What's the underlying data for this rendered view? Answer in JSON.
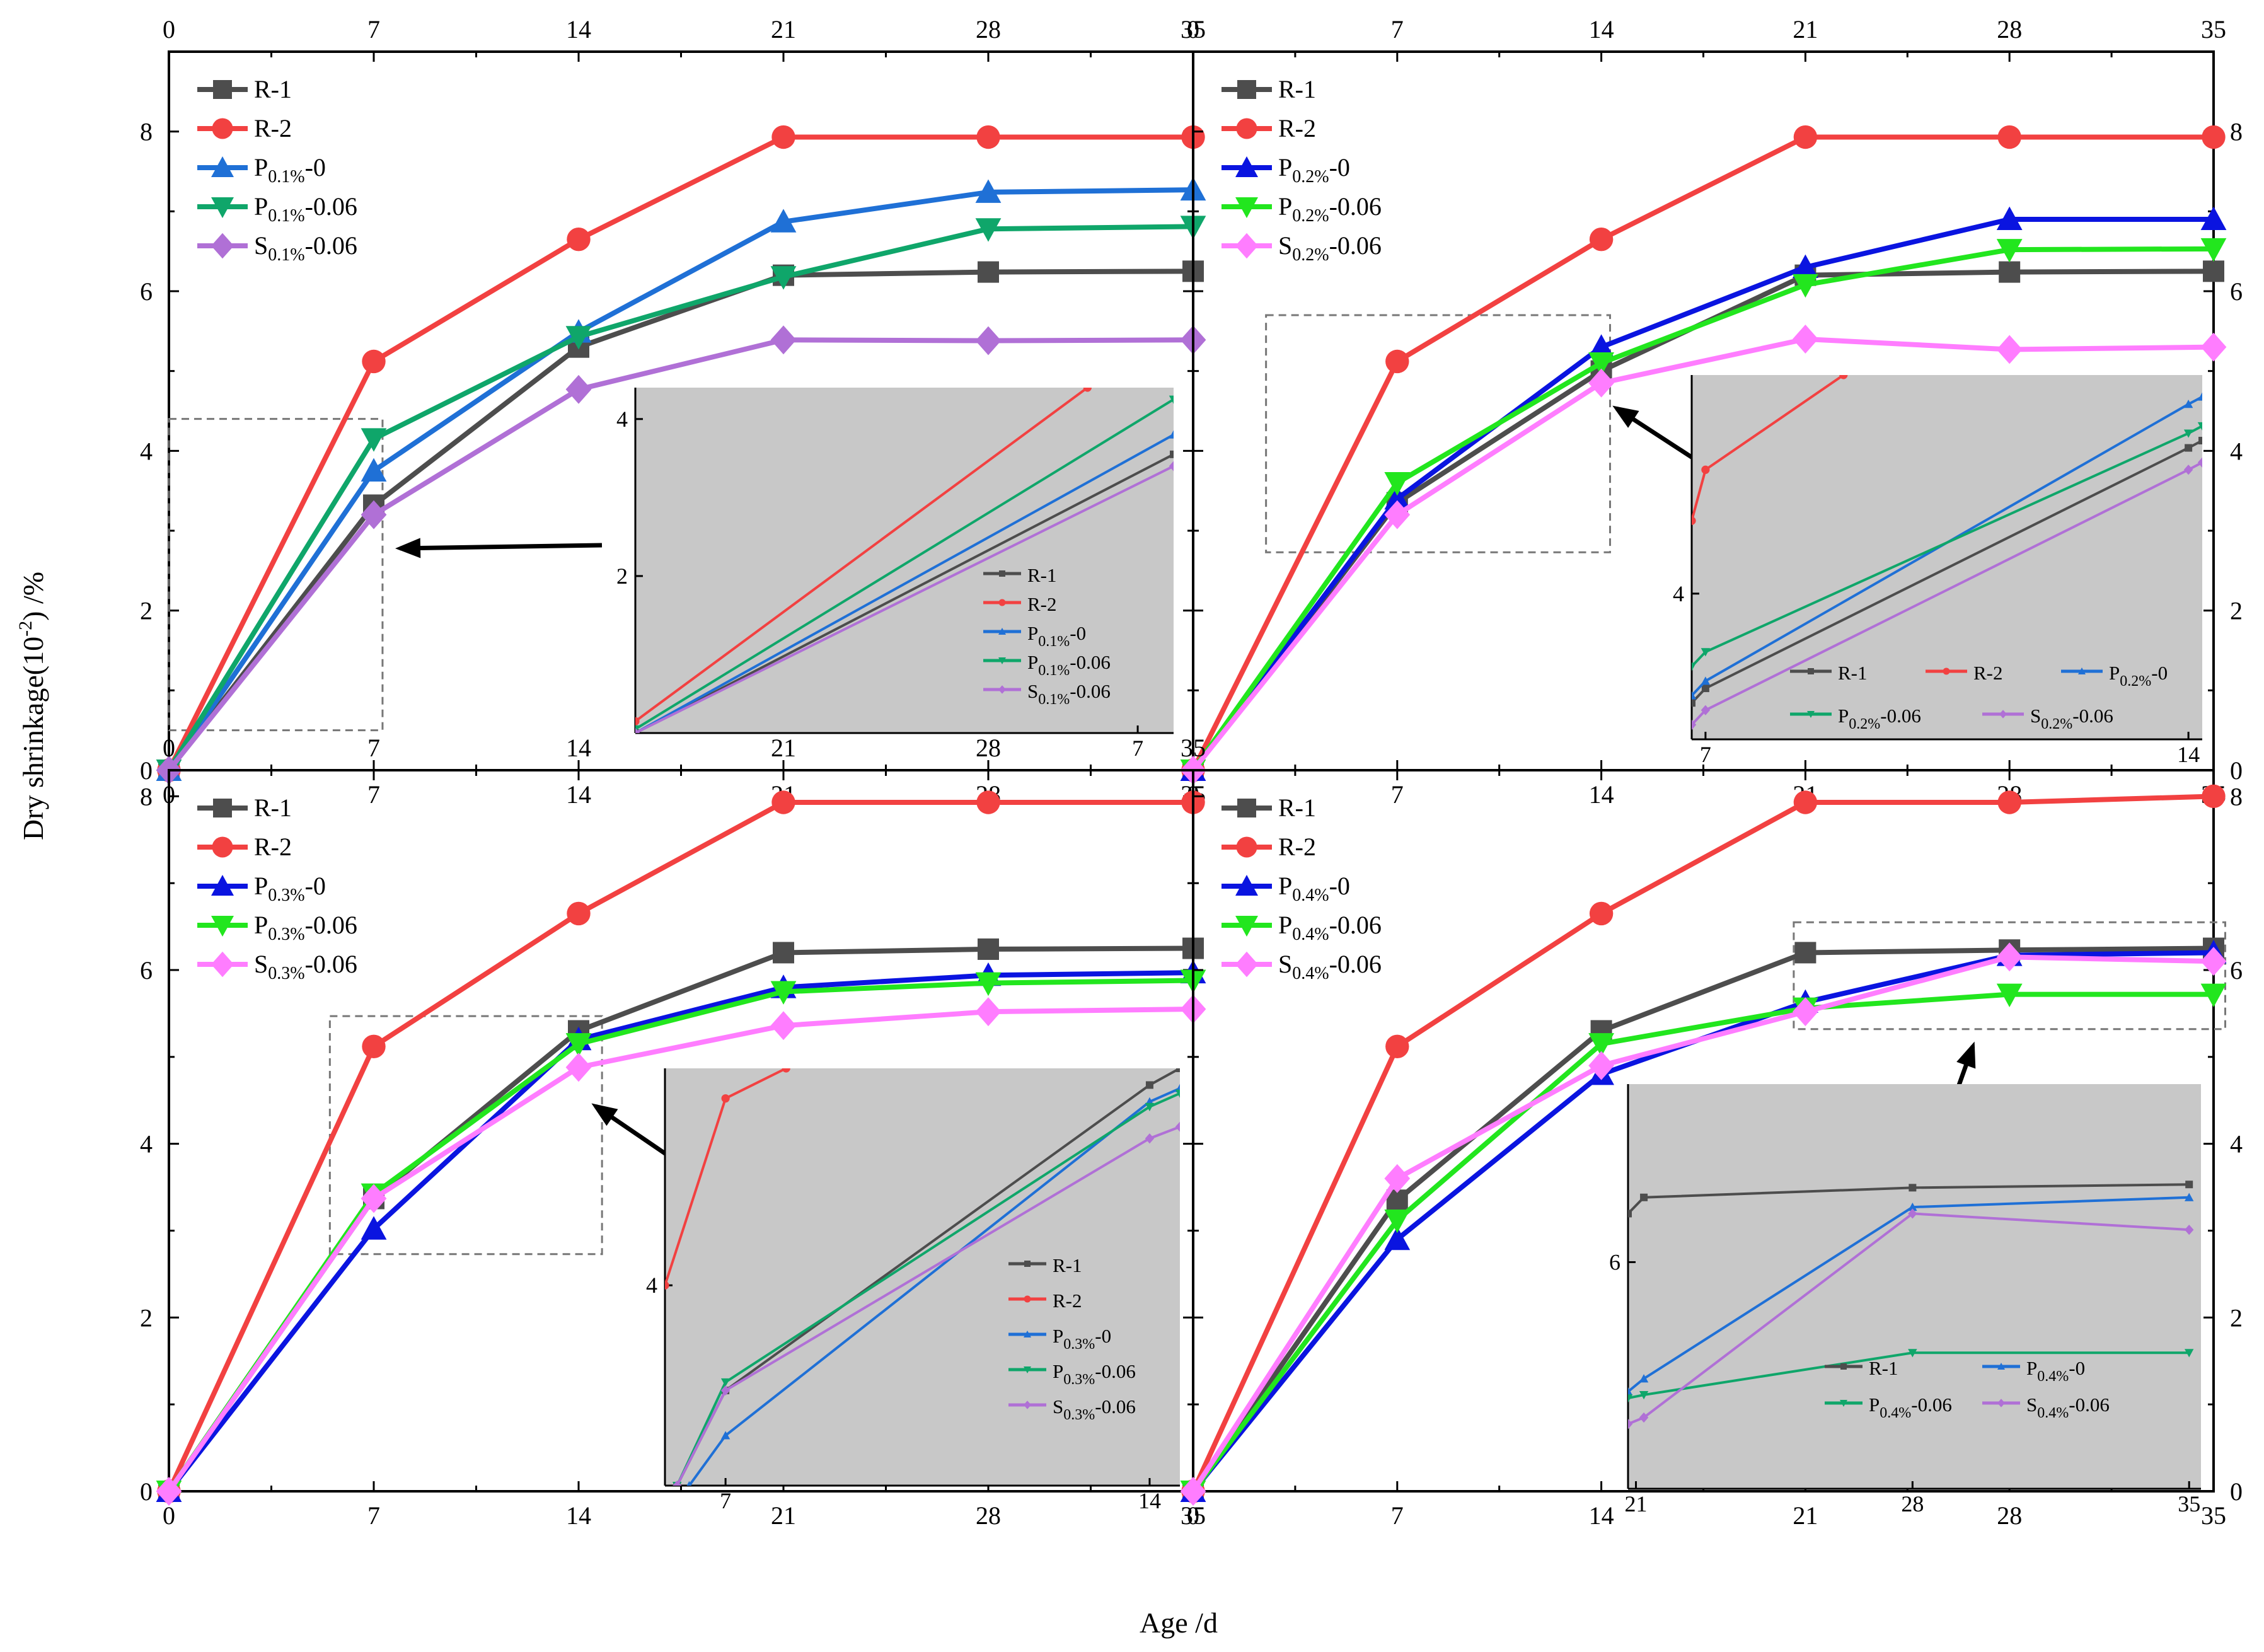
{
  "figure": {
    "ylabel": "Dry shrinkage(10",
    "ylabel_sup": "-2",
    "ylabel_unit": ") /%",
    "xlabel": "Age /d"
  },
  "colors": {
    "R-1": "#4d4d4d",
    "R-2": "#f24141",
    "P0": "#1f70d6",
    "P006": "#0fa66a",
    "S006": "#b070d6",
    "P0_dark": "#0a14e0",
    "P006_bright": "#22e61e",
    "S006_pink": "#ff7dff",
    "inset_bg": "#c8c8c8"
  },
  "chart_data": [
    {
      "id": "a",
      "type": "line",
      "xlim": [
        0,
        35
      ],
      "ylim": [
        0,
        9
      ],
      "xticks": [
        "0",
        "7",
        "14",
        "21",
        "28",
        "35"
      ],
      "yticks": [
        "0",
        "2",
        "4",
        "6",
        "8"
      ],
      "xticks_top": [
        "0",
        "7",
        "14",
        "21",
        "28",
        "35"
      ],
      "x": [
        0,
        7,
        14,
        21,
        28,
        35
      ],
      "legend_position": "top-left",
      "series": [
        {
          "key": "R-1",
          "name": "R-1",
          "sub": "",
          "color": "#4d4d4d",
          "marker": "square",
          "values": [
            0,
            3.32,
            5.3,
            6.2,
            6.24,
            6.25
          ]
        },
        {
          "key": "R-2",
          "name": "R-2",
          "sub": "",
          "color": "#f24141",
          "marker": "circle",
          "values": [
            0,
            5.12,
            6.65,
            7.93,
            7.93,
            7.93
          ]
        },
        {
          "key": "P0",
          "name": "P",
          "sub": "0.1%",
          "suffix": "-0",
          "color": "#1f70d6",
          "marker": "triangle-up",
          "values": [
            0,
            3.75,
            5.49,
            6.87,
            7.24,
            7.27
          ]
        },
        {
          "key": "P006",
          "name": "P",
          "sub": "0.1%",
          "suffix": "-0.06",
          "color": "#0fa66a",
          "marker": "triangle-down",
          "values": [
            0,
            4.15,
            5.43,
            6.18,
            6.78,
            6.81
          ]
        },
        {
          "key": "S006",
          "name": "S",
          "sub": "0.1%",
          "suffix": "-0.06",
          "color": "#b070d6",
          "marker": "diamond",
          "values": [
            0,
            3.2,
            4.77,
            5.39,
            5.38,
            5.39
          ]
        }
      ],
      "inset": {
        "xlim": [
          0,
          7.5
        ],
        "ylim": [
          0,
          4.4
        ],
        "xticks": [
          "7"
        ],
        "yticks": [
          "2",
          "4"
        ],
        "series": [
          {
            "key": "R-1",
            "values": [
              [
                0,
                0
              ],
              [
                7.5,
                3.55
              ]
            ]
          },
          {
            "key": "R-2",
            "values": [
              [
                0,
                0.15
              ],
              [
                6.3,
                4.4
              ]
            ]
          },
          {
            "key": "P0",
            "values": [
              [
                0,
                0
              ],
              [
                7.5,
                3.8
              ]
            ]
          },
          {
            "key": "P006",
            "values": [
              [
                0,
                0.05
              ],
              [
                7.5,
                4.25
              ]
            ]
          },
          {
            "key": "S006",
            "values": [
              [
                0,
                0
              ],
              [
                7.5,
                3.4
              ]
            ]
          }
        ],
        "legend": [
          {
            "key": "R-1",
            "name": "R-1",
            "sub": "",
            "suffix": ""
          },
          {
            "key": "R-2",
            "name": "R-2",
            "sub": "",
            "suffix": ""
          },
          {
            "key": "P0",
            "name": "P",
            "sub": "0.1%",
            "suffix": "-0"
          },
          {
            "key": "P006",
            "name": "P",
            "sub": "0.1%",
            "suffix": "-0.06"
          },
          {
            "key": "S006",
            "name": "S",
            "sub": "0.1%",
            "suffix": "-0.06"
          }
        ]
      }
    },
    {
      "id": "b",
      "type": "line",
      "xlim": [
        0,
        35
      ],
      "ylim": [
        0,
        9
      ],
      "xticks": [
        "0",
        "7",
        "14",
        "21",
        "28",
        "35"
      ],
      "yticks": [
        "0",
        "2",
        "4",
        "6",
        "8"
      ],
      "xticks_top": [
        "0",
        "7",
        "14",
        "21",
        "28",
        "35"
      ],
      "x": [
        0,
        7,
        14,
        21,
        28,
        35
      ],
      "legend_position": "top-left",
      "series": [
        {
          "key": "R-1",
          "name": "R-1",
          "sub": "",
          "color": "#4d4d4d",
          "marker": "square",
          "values": [
            0,
            3.35,
            5.0,
            6.2,
            6.24,
            6.25
          ]
        },
        {
          "key": "R-2",
          "name": "R-2",
          "sub": "",
          "color": "#f24141",
          "marker": "circle",
          "values": [
            0,
            5.12,
            6.65,
            7.93,
            7.93,
            7.93
          ]
        },
        {
          "key": "P0",
          "name": "P",
          "sub": "0.2%",
          "suffix": "-0",
          "color": "#0a14e0",
          "marker": "triangle-up",
          "values": [
            0,
            3.4,
            5.3,
            6.3,
            6.9,
            6.9
          ]
        },
        {
          "key": "P006",
          "name": "P",
          "sub": "0.2%",
          "suffix": "-0.06",
          "color": "#22e61e",
          "marker": "triangle-down",
          "values": [
            0,
            3.6,
            5.1,
            6.08,
            6.52,
            6.53
          ]
        },
        {
          "key": "S006",
          "name": "S",
          "sub": "0.2%",
          "suffix": "-0.06",
          "color": "#ff7dff",
          "marker": "diamond",
          "values": [
            0,
            3.2,
            4.85,
            5.4,
            5.27,
            5.3
          ]
        }
      ],
      "inset": {
        "xlim": [
          6.8,
          14.2
        ],
        "ylim": [
          3.0,
          5.5
        ],
        "xticks": [
          "7",
          "14"
        ],
        "yticks": [
          "4"
        ],
        "series": [
          {
            "key": "R-1",
            "values": [
              [
                6.8,
                3.25
              ],
              [
                7,
                3.35
              ],
              [
                14,
                5.0
              ],
              [
                14.2,
                5.05
              ]
            ]
          },
          {
            "key": "R-2",
            "values": [
              [
                6.8,
                4.5
              ],
              [
                7,
                4.85
              ],
              [
                9,
                5.5
              ]
            ]
          },
          {
            "key": "P0",
            "values": [
              [
                6.8,
                3.3
              ],
              [
                7,
                3.4
              ],
              [
                14,
                5.3
              ],
              [
                14.2,
                5.35
              ]
            ]
          },
          {
            "key": "P006",
            "values": [
              [
                6.8,
                3.5
              ],
              [
                7,
                3.6
              ],
              [
                14,
                5.1
              ],
              [
                14.2,
                5.15
              ]
            ]
          },
          {
            "key": "S006",
            "values": [
              [
                6.8,
                3.1
              ],
              [
                7,
                3.2
              ],
              [
                14,
                4.85
              ],
              [
                14.2,
                4.9
              ]
            ]
          }
        ],
        "legend": [
          {
            "key": "R-1",
            "name": "R-1",
            "sub": "",
            "suffix": ""
          },
          {
            "key": "R-2",
            "name": "R-2",
            "sub": "",
            "suffix": ""
          },
          {
            "key": "P0",
            "name": "P",
            "sub": "0.2%",
            "suffix": "-0"
          },
          {
            "key": "P006",
            "name": "P",
            "sub": "0.2%",
            "suffix": "-0.06"
          },
          {
            "key": "S006",
            "name": "S",
            "sub": "0.2%",
            "suffix": "-0.06"
          }
        ]
      }
    },
    {
      "id": "c",
      "type": "line",
      "xlim": [
        0,
        35
      ],
      "ylim": [
        0,
        8.3
      ],
      "xticks": [
        "0",
        "7",
        "14",
        "21",
        "28",
        "35"
      ],
      "yticks": [
        "0",
        "2",
        "4",
        "6",
        "8"
      ],
      "xticks_top": [
        "0",
        "7",
        "14",
        "21",
        "28",
        "35"
      ],
      "x": [
        0,
        7,
        14,
        21,
        28,
        35
      ],
      "legend_position": "top-left",
      "series": [
        {
          "key": "R-1",
          "name": "R-1",
          "sub": "",
          "color": "#4d4d4d",
          "marker": "square",
          "values": [
            0,
            3.37,
            5.3,
            6.2,
            6.24,
            6.25
          ]
        },
        {
          "key": "R-2",
          "name": "R-2",
          "sub": "",
          "color": "#f24141",
          "marker": "circle",
          "values": [
            0,
            5.12,
            6.65,
            7.93,
            7.93,
            7.93
          ]
        },
        {
          "key": "P0",
          "name": "P",
          "sub": "0.3%",
          "suffix": "-0",
          "color": "#0a14e0",
          "marker": "triangle-up",
          "values": [
            0,
            3.02,
            5.2,
            5.8,
            5.94,
            5.97
          ]
        },
        {
          "key": "P006",
          "name": "P",
          "sub": "0.3%",
          "suffix": "-0.06",
          "color": "#22e61e",
          "marker": "triangle-down",
          "values": [
            0,
            3.42,
            5.15,
            5.75,
            5.85,
            5.88
          ]
        },
        {
          "key": "S006",
          "name": "S",
          "sub": "0.3%",
          "suffix": "-0.06",
          "color": "#ff7dff",
          "marker": "diamond",
          "values": [
            0,
            3.37,
            4.88,
            5.36,
            5.52,
            5.55
          ]
        }
      ],
      "inset": {
        "xlim": [
          6.0,
          14.5
        ],
        "ylim": [
          2.8,
          5.3
        ],
        "xticks": [
          "7",
          "14"
        ],
        "yticks": [
          "4"
        ],
        "series": [
          {
            "key": "R-1",
            "values": [
              [
                6.2,
                2.8
              ],
              [
                7,
                3.37
              ],
              [
                14,
                5.2
              ],
              [
                14.5,
                5.3
              ]
            ]
          },
          {
            "key": "R-2",
            "values": [
              [
                6.0,
                4.0
              ],
              [
                7,
                5.12
              ],
              [
                8.0,
                5.3
              ]
            ]
          },
          {
            "key": "P0",
            "values": [
              [
                6.4,
                2.8
              ],
              [
                7,
                3.1
              ],
              [
                14,
                5.1
              ],
              [
                14.5,
                5.18
              ]
            ]
          },
          {
            "key": "P006",
            "values": [
              [
                6.2,
                2.8
              ],
              [
                7,
                3.42
              ],
              [
                14,
                5.07
              ],
              [
                14.5,
                5.15
              ]
            ]
          },
          {
            "key": "S006",
            "values": [
              [
                6.2,
                2.8
              ],
              [
                7,
                3.37
              ],
              [
                14,
                4.88
              ],
              [
                14.5,
                4.95
              ]
            ]
          }
        ],
        "legend": [
          {
            "key": "R-1",
            "name": "R-1",
            "sub": "",
            "suffix": ""
          },
          {
            "key": "R-2",
            "name": "R-2",
            "sub": "",
            "suffix": ""
          },
          {
            "key": "P0",
            "name": "P",
            "sub": "0.3%",
            "suffix": "-0"
          },
          {
            "key": "P006",
            "name": "P",
            "sub": "0.3%",
            "suffix": "-0.06"
          },
          {
            "key": "S006",
            "name": "S",
            "sub": "0.3%",
            "suffix": "-0.06"
          }
        ]
      }
    },
    {
      "id": "d",
      "type": "line",
      "xlim": [
        0,
        35
      ],
      "ylim": [
        0,
        8.3
      ],
      "xticks": [
        "0",
        "7",
        "14",
        "21",
        "28",
        "35"
      ],
      "yticks": [
        "0",
        "2",
        "4",
        "6",
        "8"
      ],
      "xticks_top": [],
      "x": [
        0,
        7,
        14,
        21,
        28,
        35
      ],
      "legend_position": "top-left",
      "series": [
        {
          "key": "R-1",
          "name": "R-1",
          "sub": "",
          "color": "#4d4d4d",
          "marker": "square",
          "values": [
            0,
            3.35,
            5.3,
            6.2,
            6.23,
            6.25
          ]
        },
        {
          "key": "R-2",
          "name": "R-2",
          "sub": "",
          "color": "#f24141",
          "marker": "circle",
          "values": [
            0,
            5.12,
            6.65,
            7.93,
            7.93,
            8.0
          ]
        },
        {
          "key": "P0",
          "name": "P",
          "sub": "0.4%",
          "suffix": "-0",
          "color": "#0a14e0",
          "marker": "triangle-up",
          "values": [
            0,
            2.9,
            4.8,
            5.63,
            6.17,
            6.2
          ]
        },
        {
          "key": "P006",
          "name": "P",
          "sub": "0.4%",
          "suffix": "-0.06",
          "color": "#22e61e",
          "marker": "triangle-down",
          "values": [
            0,
            3.12,
            5.15,
            5.56,
            5.72,
            5.72
          ]
        },
        {
          "key": "S006",
          "name": "S",
          "sub": "0.4%",
          "suffix": "-0.06",
          "color": "#ff7dff",
          "marker": "diamond",
          "values": [
            0,
            3.6,
            4.9,
            5.52,
            6.15,
            6.1
          ]
        }
      ],
      "inset": {
        "xlim": [
          20.8,
          35.3
        ],
        "ylim": [
          5.3,
          6.55
        ],
        "xticks": [
          "21",
          "28",
          "35"
        ],
        "yticks": [
          "6"
        ],
        "series": [
          {
            "key": "R-1",
            "values": [
              [
                20.8,
                6.15
              ],
              [
                21.2,
                6.2
              ],
              [
                28,
                6.23
              ],
              [
                35,
                6.24
              ]
            ]
          },
          {
            "key": "P0",
            "values": [
              [
                20.8,
                5.6
              ],
              [
                21.2,
                5.64
              ],
              [
                28,
                6.17
              ],
              [
                35,
                6.2
              ]
            ]
          },
          {
            "key": "P006",
            "values": [
              [
                20.8,
                5.58
              ],
              [
                21.2,
                5.59
              ],
              [
                28,
                5.72
              ],
              [
                35,
                5.72
              ]
            ]
          },
          {
            "key": "S006",
            "values": [
              [
                20.8,
                5.5
              ],
              [
                21.2,
                5.52
              ],
              [
                28,
                6.15
              ],
              [
                35,
                6.1
              ]
            ]
          }
        ],
        "legend": [
          {
            "key": "R-1",
            "name": "R-1",
            "sub": "",
            "suffix": ""
          },
          {
            "key": "P0",
            "name": "P",
            "sub": "0.4%",
            "suffix": "-0"
          },
          {
            "key": "P006",
            "name": "P",
            "sub": "0.4%",
            "suffix": "-0.06"
          },
          {
            "key": "S006",
            "name": "S",
            "sub": "0.4%",
            "suffix": "-0.06"
          }
        ]
      }
    }
  ]
}
